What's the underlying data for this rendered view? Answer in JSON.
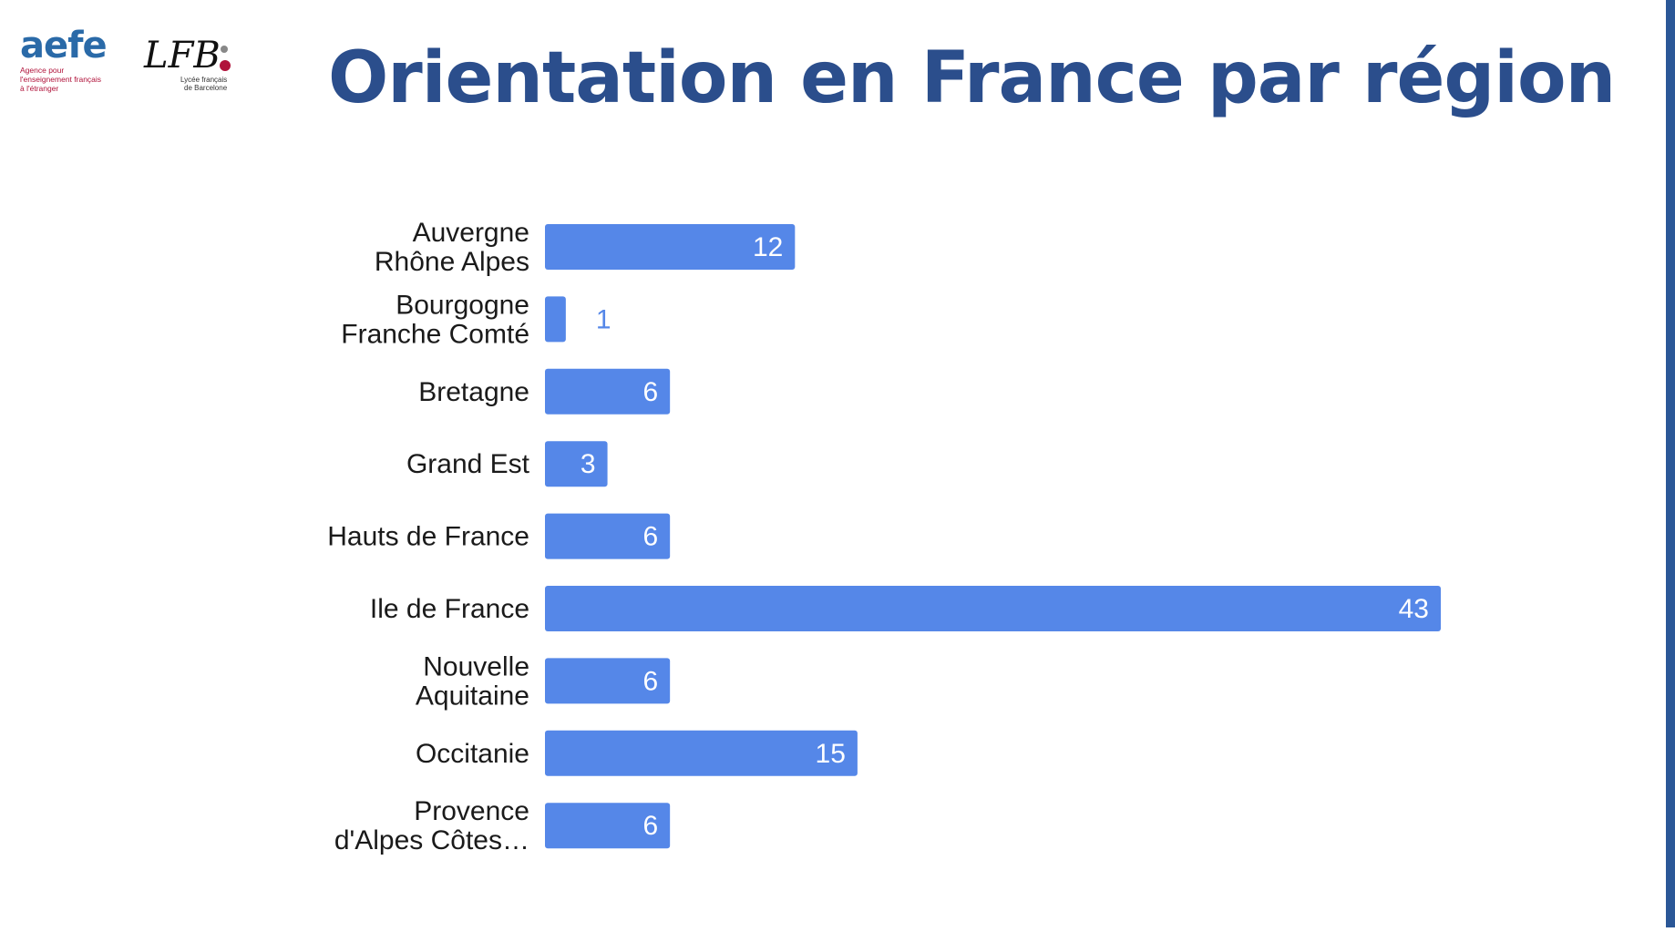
{
  "slide": {
    "title": "Orientation en France par région"
  },
  "logos": {
    "aefe": {
      "wordmark": "aefe",
      "tagline_lines": [
        "Agence pour",
        "l'enseignement français",
        "à l'étranger"
      ]
    },
    "lfb": {
      "wordmark": "LFB",
      "tagline_lines": [
        "Lycée français",
        "de Barcelone"
      ]
    }
  },
  "colors": {
    "bar": "#5587e8",
    "title": "#2b4e8c",
    "label": "#1a1a1a",
    "value_inside": "#ffffff",
    "value_outside": "#5587e8",
    "accent_bar": "#2b5797"
  },
  "chart_data": {
    "type": "bar",
    "orientation": "horizontal",
    "categories": [
      [
        "Auvergne",
        "Rhône Alpes"
      ],
      [
        "Bourgogne",
        "Franche Comté"
      ],
      [
        "Bretagne"
      ],
      [
        "Grand Est"
      ],
      [
        "Hauts de France"
      ],
      [
        "Ile de France"
      ],
      [
        "Nouvelle",
        "Aquitaine"
      ],
      [
        "Occitanie"
      ],
      [
        "Provence",
        "d'Alpes Côtes…"
      ]
    ],
    "values": [
      12,
      1,
      6,
      3,
      6,
      43,
      6,
      15,
      6
    ],
    "title": "",
    "xlabel": "",
    "ylabel": "",
    "xlim": [
      0,
      43
    ],
    "grid": false,
    "legend": "none",
    "data_labels": true
  }
}
